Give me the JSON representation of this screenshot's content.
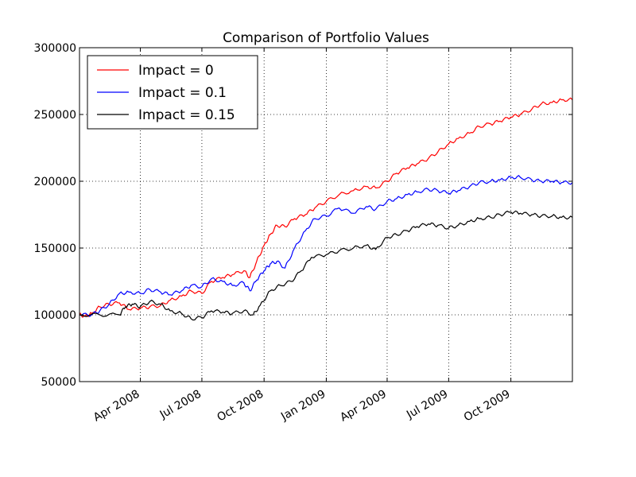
{
  "chart_data": {
    "type": "line",
    "title": "Comparison of Portfolio Values",
    "xlabel": "",
    "ylabel": "",
    "xlim": [
      "2008-01-02",
      "2009-12-31"
    ],
    "ylim": [
      50000,
      300000
    ],
    "yticks": [
      50000,
      100000,
      150000,
      200000,
      250000,
      300000
    ],
    "xticks": [
      {
        "date": "2008-04-01",
        "label": "Apr 2008"
      },
      {
        "date": "2008-07-01",
        "label": "Jul 2008"
      },
      {
        "date": "2008-10-01",
        "label": "Oct 2008"
      },
      {
        "date": "2009-01-01",
        "label": "Jan 2009"
      },
      {
        "date": "2009-04-01",
        "label": "Apr 2009"
      },
      {
        "date": "2009-07-01",
        "label": "Jul 2009"
      },
      {
        "date": "2009-10-01",
        "label": "Oct 2009"
      }
    ],
    "grid": true,
    "legend_position": "top-left",
    "series": [
      {
        "name": "Impact = 0",
        "color": "#ff0000",
        "points": [
          [
            "2008-01-02",
            100000
          ],
          [
            "2008-01-10",
            99000
          ],
          [
            "2008-01-20",
            101000
          ],
          [
            "2008-02-01",
            106000
          ],
          [
            "2008-02-15",
            108000
          ],
          [
            "2008-03-01",
            109000
          ],
          [
            "2008-03-15",
            104000
          ],
          [
            "2008-04-01",
            105000
          ],
          [
            "2008-04-15",
            106000
          ],
          [
            "2008-05-01",
            107000
          ],
          [
            "2008-05-15",
            111000
          ],
          [
            "2008-06-01",
            114000
          ],
          [
            "2008-06-15",
            118000
          ],
          [
            "2008-07-01",
            116000
          ],
          [
            "2008-07-15",
            125000
          ],
          [
            "2008-08-01",
            128000
          ],
          [
            "2008-08-15",
            130000
          ],
          [
            "2008-09-01",
            133000
          ],
          [
            "2008-09-10",
            128000
          ],
          [
            "2008-09-20",
            140000
          ],
          [
            "2008-10-01",
            152000
          ],
          [
            "2008-10-10",
            160000
          ],
          [
            "2008-10-20",
            167000
          ],
          [
            "2008-11-01",
            166000
          ],
          [
            "2008-11-15",
            172000
          ],
          [
            "2008-12-01",
            175000
          ],
          [
            "2008-12-15",
            180000
          ],
          [
            "2009-01-01",
            185000
          ],
          [
            "2009-01-20",
            190000
          ],
          [
            "2009-02-10",
            193000
          ],
          [
            "2009-03-01",
            196000
          ],
          [
            "2009-03-15",
            195000
          ],
          [
            "2009-04-01",
            200000
          ],
          [
            "2009-04-15",
            206000
          ],
          [
            "2009-05-01",
            210000
          ],
          [
            "2009-05-15",
            213000
          ],
          [
            "2009-06-01",
            217000
          ],
          [
            "2009-06-15",
            222000
          ],
          [
            "2009-07-01",
            228000
          ],
          [
            "2009-07-15",
            232000
          ],
          [
            "2009-08-01",
            236000
          ],
          [
            "2009-08-15",
            241000
          ],
          [
            "2009-09-01",
            243000
          ],
          [
            "2009-09-15",
            245000
          ],
          [
            "2009-10-01",
            248000
          ],
          [
            "2009-10-15",
            250000
          ],
          [
            "2009-11-01",
            254000
          ],
          [
            "2009-11-15",
            258000
          ],
          [
            "2009-12-01",
            259000
          ],
          [
            "2009-12-15",
            261000
          ],
          [
            "2009-12-31",
            261000
          ]
        ]
      },
      {
        "name": "Impact = 0.1",
        "color": "#0000ff",
        "points": [
          [
            "2008-01-02",
            100000
          ],
          [
            "2008-01-20",
            100000
          ],
          [
            "2008-02-01",
            103000
          ],
          [
            "2008-02-15",
            108000
          ],
          [
            "2008-03-01",
            116000
          ],
          [
            "2008-03-15",
            117000
          ],
          [
            "2008-04-01",
            116000
          ],
          [
            "2008-04-15",
            119000
          ],
          [
            "2008-05-01",
            117000
          ],
          [
            "2008-05-15",
            115000
          ],
          [
            "2008-06-01",
            118000
          ],
          [
            "2008-06-15",
            122000
          ],
          [
            "2008-07-01",
            121000
          ],
          [
            "2008-07-15",
            127000
          ],
          [
            "2008-08-01",
            125000
          ],
          [
            "2008-08-15",
            122000
          ],
          [
            "2008-09-01",
            124000
          ],
          [
            "2008-09-10",
            118000
          ],
          [
            "2008-09-20",
            126000
          ],
          [
            "2008-10-01",
            133000
          ],
          [
            "2008-10-10",
            138000
          ],
          [
            "2008-10-20",
            140000
          ],
          [
            "2008-11-01",
            135000
          ],
          [
            "2008-11-15",
            150000
          ],
          [
            "2008-12-01",
            163000
          ],
          [
            "2008-12-15",
            172000
          ],
          [
            "2009-01-01",
            174000
          ],
          [
            "2009-01-20",
            180000
          ],
          [
            "2009-02-10",
            176000
          ],
          [
            "2009-03-01",
            181000
          ],
          [
            "2009-03-15",
            179000
          ],
          [
            "2009-04-01",
            185000
          ],
          [
            "2009-04-15",
            187000
          ],
          [
            "2009-05-01",
            190000
          ],
          [
            "2009-05-15",
            192000
          ],
          [
            "2009-06-01",
            194000
          ],
          [
            "2009-06-15",
            193000
          ],
          [
            "2009-07-01",
            191000
          ],
          [
            "2009-07-15",
            193000
          ],
          [
            "2009-08-01",
            196000
          ],
          [
            "2009-08-15",
            199000
          ],
          [
            "2009-09-01",
            200000
          ],
          [
            "2009-09-15",
            201000
          ],
          [
            "2009-10-01",
            203000
          ],
          [
            "2009-10-15",
            203000
          ],
          [
            "2009-11-01",
            201000
          ],
          [
            "2009-11-15",
            200000
          ],
          [
            "2009-12-01",
            200000
          ],
          [
            "2009-12-15",
            199000
          ],
          [
            "2009-12-31",
            199000
          ]
        ]
      },
      {
        "name": "Impact = 0.15",
        "color": "#000000",
        "points": [
          [
            "2008-01-02",
            100000
          ],
          [
            "2008-02-01",
            100000
          ],
          [
            "2008-03-01",
            100000
          ],
          [
            "2008-03-10",
            106000
          ],
          [
            "2008-03-20",
            108000
          ],
          [
            "2008-04-01",
            106000
          ],
          [
            "2008-04-15",
            110000
          ],
          [
            "2008-05-01",
            108000
          ],
          [
            "2008-05-15",
            103000
          ],
          [
            "2008-06-01",
            101000
          ],
          [
            "2008-06-15",
            97000
          ],
          [
            "2008-07-01",
            98000
          ],
          [
            "2008-07-15",
            103000
          ],
          [
            "2008-08-01",
            102000
          ],
          [
            "2008-08-15",
            101000
          ],
          [
            "2008-09-01",
            103000
          ],
          [
            "2008-09-15",
            100000
          ],
          [
            "2008-09-25",
            107000
          ],
          [
            "2008-10-10",
            118000
          ],
          [
            "2008-10-25",
            122000
          ],
          [
            "2008-11-10",
            125000
          ],
          [
            "2008-11-25",
            133000
          ],
          [
            "2008-12-10",
            143000
          ],
          [
            "2009-01-01",
            145000
          ],
          [
            "2009-01-20",
            148000
          ],
          [
            "2009-02-10",
            150000
          ],
          [
            "2009-03-01",
            152000
          ],
          [
            "2009-03-15",
            149000
          ],
          [
            "2009-04-01",
            158000
          ],
          [
            "2009-04-15",
            160000
          ],
          [
            "2009-05-01",
            163000
          ],
          [
            "2009-05-15",
            166000
          ],
          [
            "2009-06-01",
            168000
          ],
          [
            "2009-06-15",
            167000
          ],
          [
            "2009-07-01",
            165000
          ],
          [
            "2009-07-15",
            167000
          ],
          [
            "2009-08-01",
            170000
          ],
          [
            "2009-08-15",
            172000
          ],
          [
            "2009-09-01",
            173000
          ],
          [
            "2009-09-15",
            175000
          ],
          [
            "2009-10-01",
            177000
          ],
          [
            "2009-10-15",
            176000
          ],
          [
            "2009-11-01",
            175000
          ],
          [
            "2009-11-15",
            174000
          ],
          [
            "2009-12-01",
            174000
          ],
          [
            "2009-12-15",
            173000
          ],
          [
            "2009-12-31",
            173000
          ]
        ]
      }
    ]
  }
}
